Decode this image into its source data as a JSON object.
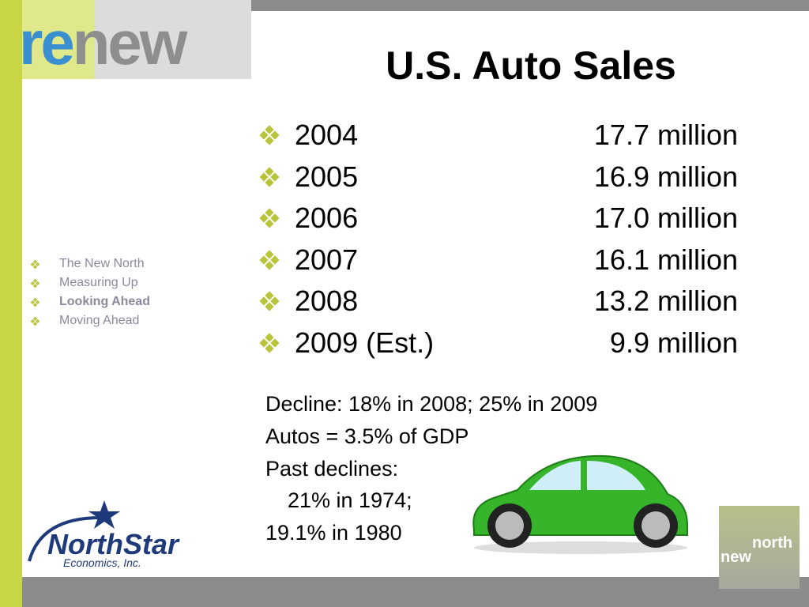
{
  "logo": {
    "re": "re",
    "new": "new"
  },
  "title": "U.S. Auto Sales",
  "sales": [
    {
      "year": "2004",
      "amount": "17.7 million"
    },
    {
      "year": "2005",
      "amount": "16.9 million"
    },
    {
      "year": "2006",
      "amount": "17.0 million"
    },
    {
      "year": "2007",
      "amount": "16.1 million"
    },
    {
      "year": "2008",
      "amount": "13.2 million"
    },
    {
      "year": "2009 (Est.)",
      "amount": "9.9 million"
    }
  ],
  "nav": {
    "items": [
      "The New North",
      "Measuring Up",
      "Looking Ahead",
      "Moving Ahead"
    ],
    "active": 2
  },
  "notes": [
    "Decline: 18% in 2008; 25% in 2009",
    "Autos = 3.5% of GDP",
    "Past declines:",
    "21% in 1974;",
    "19.1% in 1980"
  ],
  "northstar": {
    "name": "NorthStar",
    "sub": "Economics, Inc."
  },
  "corner_logo": {
    "new": "new",
    "north": "north"
  }
}
